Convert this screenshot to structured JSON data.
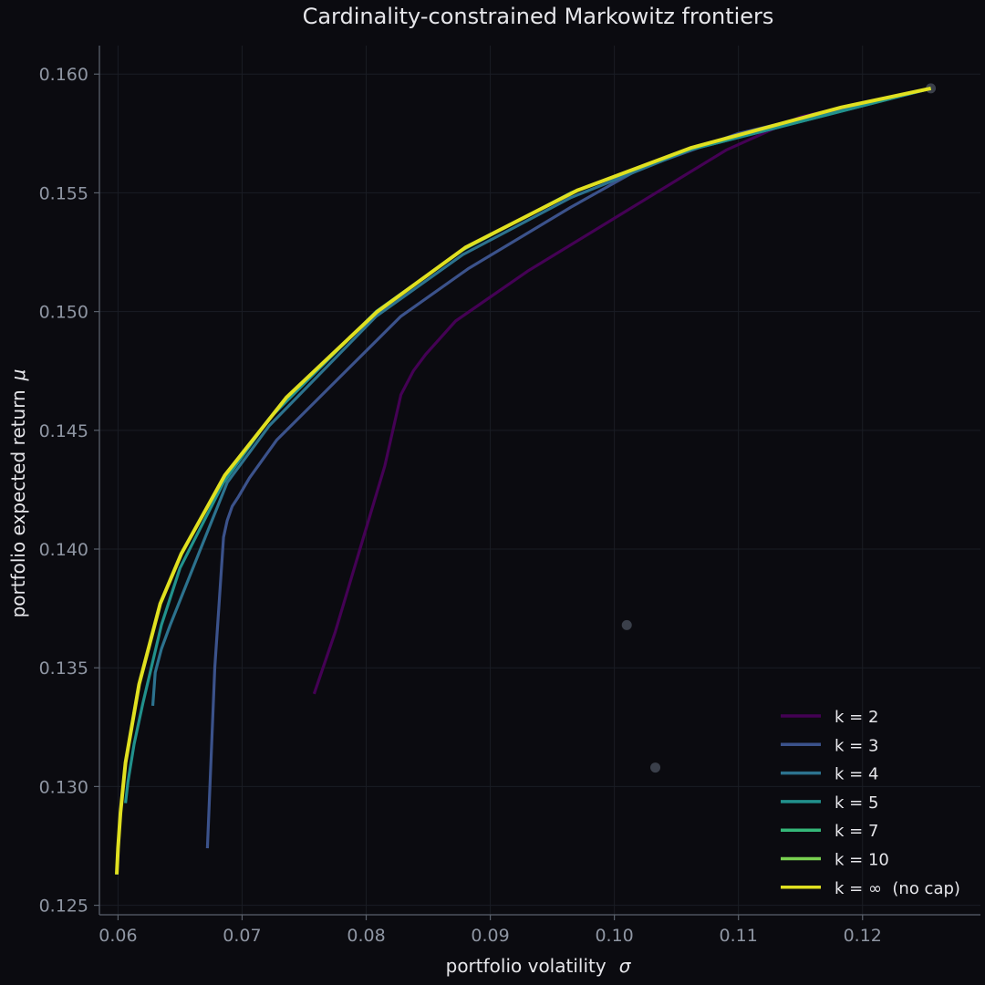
{
  "chart_data": {
    "type": "line",
    "title": "Cardinality-constrained Markowitz frontiers",
    "xlabel": "portfolio volatility",
    "xlabel_symbol": "σ",
    "ylabel": "portfolio expected return",
    "ylabel_symbol": "μ",
    "xlim": [
      0.0585,
      0.1295
    ],
    "ylim": [
      0.1246,
      0.1612
    ],
    "xticks": [
      0.06,
      0.07,
      0.08,
      0.09,
      0.1,
      0.11,
      0.12
    ],
    "xtick_labels": [
      "0.06",
      "0.07",
      "0.08",
      "0.09",
      "0.10",
      "0.11",
      "0.12"
    ],
    "yticks": [
      0.125,
      0.13,
      0.135,
      0.14,
      0.145,
      0.15,
      0.155,
      0.16
    ],
    "ytick_labels": [
      "0.125",
      "0.130",
      "0.135",
      "0.140",
      "0.145",
      "0.150",
      "0.155",
      "0.160"
    ],
    "grid": true,
    "legend_position": "lower-right",
    "colors": {
      "background": "#0b0b10",
      "k2": "#440154",
      "k3": "#3b528b",
      "k4": "#2c728e",
      "k5": "#21918c",
      "k7": "#35b779",
      "k10": "#7ad151",
      "kinf": "#e0e020",
      "assets": "#3a3f4a"
    },
    "series": [
      {
        "name": "k = 2",
        "color": "#440154",
        "x": [
          0.0758,
          0.0775,
          0.0795,
          0.0815,
          0.0828,
          0.0838,
          0.0848,
          0.0872,
          0.093,
          0.109,
          0.115,
          0.1255
        ],
        "y": [
          0.1339,
          0.1365,
          0.14,
          0.1435,
          0.1465,
          0.1475,
          0.1482,
          0.1496,
          0.1517,
          0.1568,
          0.1582,
          0.1594
        ]
      },
      {
        "name": "k = 3",
        "color": "#3b528b",
        "x": [
          0.0672,
          0.0678,
          0.0685,
          0.0688,
          0.0692,
          0.0697,
          0.0706,
          0.0728,
          0.0828,
          0.0882,
          0.0965,
          0.102,
          0.11,
          0.1255
        ],
        "y": [
          0.1274,
          0.135,
          0.1405,
          0.1412,
          0.1418,
          0.1422,
          0.143,
          0.1446,
          0.1498,
          0.1518,
          0.1544,
          0.156,
          0.1575,
          0.1594
        ]
      },
      {
        "name": "k = 4",
        "color": "#2c728e",
        "x": [
          0.0628,
          0.063,
          0.0635,
          0.0642,
          0.0665,
          0.0688,
          0.0722,
          0.0808,
          0.0878,
          0.0965,
          0.106,
          0.1255
        ],
        "y": [
          0.1334,
          0.1348,
          0.1358,
          0.1368,
          0.1398,
          0.1428,
          0.1452,
          0.1498,
          0.1524,
          0.1548,
          0.1568,
          0.1594
        ]
      },
      {
        "name": "k = 5",
        "color": "#21918c",
        "x": [
          0.0606,
          0.0608,
          0.0613,
          0.062,
          0.0635,
          0.065,
          0.0685,
          0.0722,
          0.0808,
          0.0878,
          0.0965,
          0.106,
          0.1255
        ],
        "y": [
          0.1293,
          0.1302,
          0.1318,
          0.1335,
          0.1368,
          0.1392,
          0.1428,
          0.1455,
          0.15,
          0.1526,
          0.155,
          0.1568,
          0.1594
        ]
      },
      {
        "name": "k = 7",
        "color": "#35b779",
        "x": [
          0.0599,
          0.06,
          0.0602,
          0.0606,
          0.0617,
          0.0634,
          0.0651,
          0.0686,
          0.0736,
          0.0809,
          0.088,
          0.097,
          0.1062,
          0.1183,
          0.1255
        ],
        "y": [
          0.1263,
          0.1274,
          0.1289,
          0.131,
          0.1343,
          0.1377,
          0.1398,
          0.1431,
          0.1464,
          0.15,
          0.1527,
          0.1551,
          0.1569,
          0.1586,
          0.1594
        ]
      },
      {
        "name": "k = 10",
        "color": "#7ad151",
        "x": [
          0.0599,
          0.06,
          0.0602,
          0.0606,
          0.0617,
          0.0634,
          0.0651,
          0.0686,
          0.0736,
          0.0809,
          0.088,
          0.097,
          0.1062,
          0.1183,
          0.1255
        ],
        "y": [
          0.1263,
          0.1274,
          0.1289,
          0.131,
          0.1343,
          0.1377,
          0.1398,
          0.1431,
          0.1464,
          0.15,
          0.1527,
          0.1551,
          0.1569,
          0.1586,
          0.1594
        ]
      },
      {
        "name": "k = ∞  (no cap)",
        "color": "#e0e020",
        "x": [
          0.0599,
          0.06,
          0.0602,
          0.0606,
          0.0617,
          0.0634,
          0.0651,
          0.0686,
          0.0736,
          0.0809,
          0.088,
          0.097,
          0.1062,
          0.1183,
          0.1255
        ],
        "y": [
          0.1263,
          0.1274,
          0.1289,
          0.131,
          0.1343,
          0.1377,
          0.1398,
          0.1431,
          0.1464,
          0.15,
          0.1527,
          0.1551,
          0.1569,
          0.1586,
          0.1594
        ]
      }
    ],
    "asset_points": [
      {
        "x": 0.1255,
        "y": 0.1594
      },
      {
        "x": 0.101,
        "y": 0.1368
      },
      {
        "x": 0.1033,
        "y": 0.1308
      }
    ]
  }
}
